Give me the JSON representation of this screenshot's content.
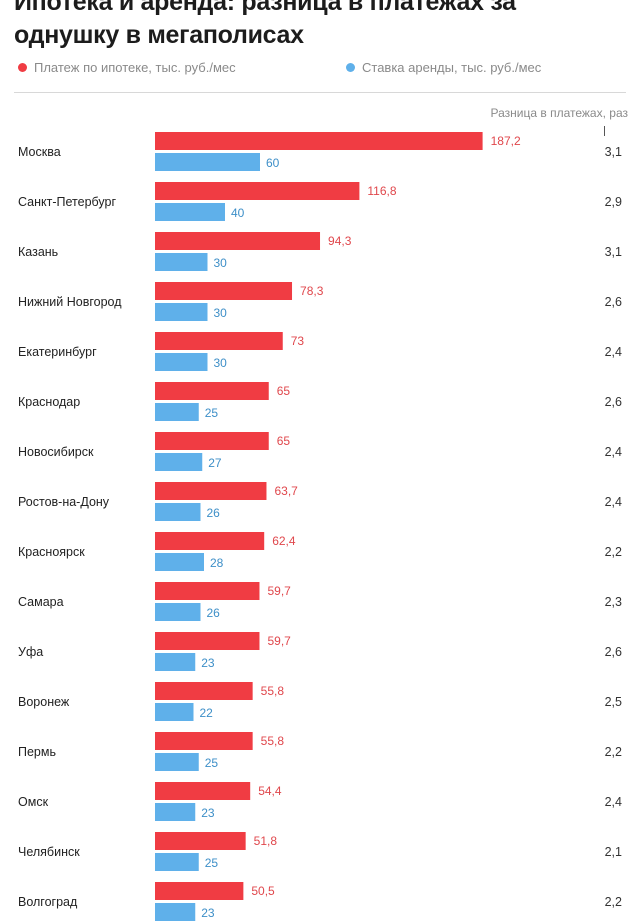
{
  "title": "Ипотека и аренда: разница в платежах за однушку в мегаполисах",
  "legend": {
    "mortgage": "Платеж по ипотеке, тыс. руб./мес",
    "rent": "Ставка аренды, тыс. руб./мес"
  },
  "colors": {
    "mortgage": "#f03c43",
    "rent": "#5fb0ea"
  },
  "diff_header": "Разница в платежах, раз",
  "chart_data": {
    "type": "bar",
    "orientation": "horizontal",
    "title": "Ипотека и аренда: разница в платежах за однушку в мегаполисах",
    "categories": [
      "Москва",
      "Санкт-Петербург",
      "Казань",
      "Нижний Новгород",
      "Екатеринбург",
      "Краснодар",
      "Новосибирск",
      "Ростов-на-Дону",
      "Красноярск",
      "Самара",
      "Уфа",
      "Воронеж",
      "Пермь",
      "Омск",
      "Челябинск",
      "Волгоград"
    ],
    "series": [
      {
        "name": "Платеж по ипотеке, тыс. руб./мес",
        "values": [
          187.2,
          116.8,
          94.3,
          78.3,
          73,
          65,
          65,
          63.7,
          62.4,
          59.7,
          59.7,
          55.8,
          55.8,
          54.4,
          51.8,
          50.5
        ]
      },
      {
        "name": "Ставка аренды, тыс. руб./мес",
        "values": [
          60,
          40,
          30,
          30,
          30,
          25,
          27,
          26,
          28,
          26,
          23,
          22,
          25,
          23,
          25,
          23
        ]
      }
    ],
    "value_labels": {
      "mortgage": [
        "187,2",
        "116,8",
        "94,3",
        "78,3",
        "73",
        "65",
        "65",
        "63,7",
        "62,4",
        "59,7",
        "59,7",
        "55,8",
        "55,8",
        "54,4",
        "51,8",
        "50,5"
      ],
      "rent": [
        "60",
        "40",
        "30",
        "30",
        "30",
        "25",
        "27",
        "26",
        "28",
        "26",
        "23",
        "22",
        "25",
        "23",
        "25",
        "23"
      ]
    },
    "difference_times": [
      "3,1",
      "2,9",
      "3,1",
      "2,6",
      "2,4",
      "2,6",
      "2,4",
      "2,4",
      "2,2",
      "2,3",
      "2,6",
      "2,5",
      "2,2",
      "2,4",
      "2,1",
      "2,2"
    ],
    "legend_position": "top",
    "grid": false
  }
}
